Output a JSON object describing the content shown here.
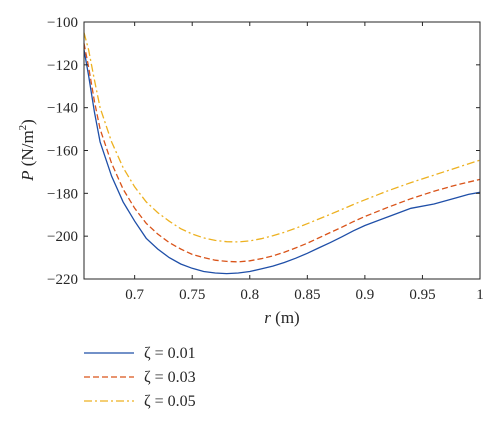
{
  "chart_data": {
    "type": "line",
    "xlabel_var": "r",
    "xlabel_unit": "(m)",
    "ylabel_var": "P",
    "ylabel_unit_pre": "(N/m",
    "ylabel_unit_sup": "2",
    "ylabel_unit_post": ")",
    "xlim": [
      0.656,
      1.0
    ],
    "ylim": [
      -220,
      -100
    ],
    "xticks": [
      0.7,
      0.75,
      0.8,
      0.85,
      0.9,
      0.95,
      1
    ],
    "xtick_labels": [
      "0.7",
      "0.75",
      "0.8",
      "0.85",
      "0.9",
      "0.95",
      "1"
    ],
    "yticks": [
      -220,
      -200,
      -180,
      -160,
      -140,
      -120,
      -100
    ],
    "ytick_labels": [
      "−220",
      "−200",
      "−180",
      "−160",
      "−140",
      "−120",
      "−100"
    ],
    "grid": false,
    "legend_position": "below",
    "series": [
      {
        "name": "ζ = 0.01",
        "color": "#1f4fa8",
        "dash": "solid",
        "x": [
          0.656,
          0.66,
          0.665,
          0.67,
          0.68,
          0.69,
          0.7,
          0.71,
          0.72,
          0.73,
          0.74,
          0.75,
          0.76,
          0.77,
          0.78,
          0.79,
          0.8,
          0.81,
          0.82,
          0.83,
          0.84,
          0.85,
          0.86,
          0.87,
          0.88,
          0.89,
          0.9,
          0.92,
          0.94,
          0.96,
          0.98,
          0.99,
          1.0
        ],
        "y": [
          -113,
          -125,
          -142,
          -156,
          -172,
          -184,
          -193,
          -201,
          -206,
          -210,
          -213,
          -215,
          -216.5,
          -217.2,
          -217.5,
          -217.2,
          -216.5,
          -215.3,
          -214,
          -212.3,
          -210.3,
          -208,
          -205.5,
          -203,
          -200.3,
          -197.5,
          -195,
          -191,
          -187,
          -185,
          -182,
          -180.5,
          -179.5
        ]
      },
      {
        "name": "ζ = 0.03",
        "color": "#d95319",
        "dash": "dashed",
        "x": [
          0.656,
          0.66,
          0.665,
          0.67,
          0.68,
          0.69,
          0.7,
          0.71,
          0.72,
          0.73,
          0.74,
          0.75,
          0.76,
          0.77,
          0.78,
          0.79,
          0.8,
          0.81,
          0.82,
          0.83,
          0.84,
          0.85,
          0.86,
          0.87,
          0.88,
          0.89,
          0.9,
          0.92,
          0.94,
          0.96,
          0.98,
          1.0
        ],
        "y": [
          -110,
          -121,
          -137,
          -150,
          -166,
          -178,
          -187,
          -194,
          -199,
          -203,
          -206,
          -208.5,
          -210,
          -211.2,
          -211.8,
          -212,
          -211.5,
          -210.5,
          -209.2,
          -207.5,
          -205.5,
          -203.3,
          -200.8,
          -198.3,
          -195.8,
          -193.2,
          -190.8,
          -186.5,
          -182.5,
          -179,
          -176,
          -173.5
        ]
      },
      {
        "name": "ζ = 0.05",
        "color": "#edb120",
        "dash": "dashdot",
        "x": [
          0.656,
          0.66,
          0.665,
          0.67,
          0.68,
          0.69,
          0.7,
          0.71,
          0.72,
          0.73,
          0.74,
          0.75,
          0.76,
          0.77,
          0.78,
          0.79,
          0.8,
          0.81,
          0.82,
          0.83,
          0.84,
          0.85,
          0.86,
          0.87,
          0.88,
          0.89,
          0.9,
          0.92,
          0.94,
          0.96,
          0.98,
          1.0
        ],
        "y": [
          -105,
          -113,
          -127,
          -140,
          -156,
          -168,
          -177,
          -184,
          -189,
          -193,
          -196.5,
          -199,
          -200.8,
          -202,
          -202.6,
          -202.7,
          -202.2,
          -201.2,
          -199.8,
          -198.2,
          -196.3,
          -194.2,
          -192,
          -189.8,
          -187.5,
          -185.2,
          -183,
          -178.8,
          -175,
          -171.5,
          -168,
          -164.5
        ]
      }
    ]
  }
}
